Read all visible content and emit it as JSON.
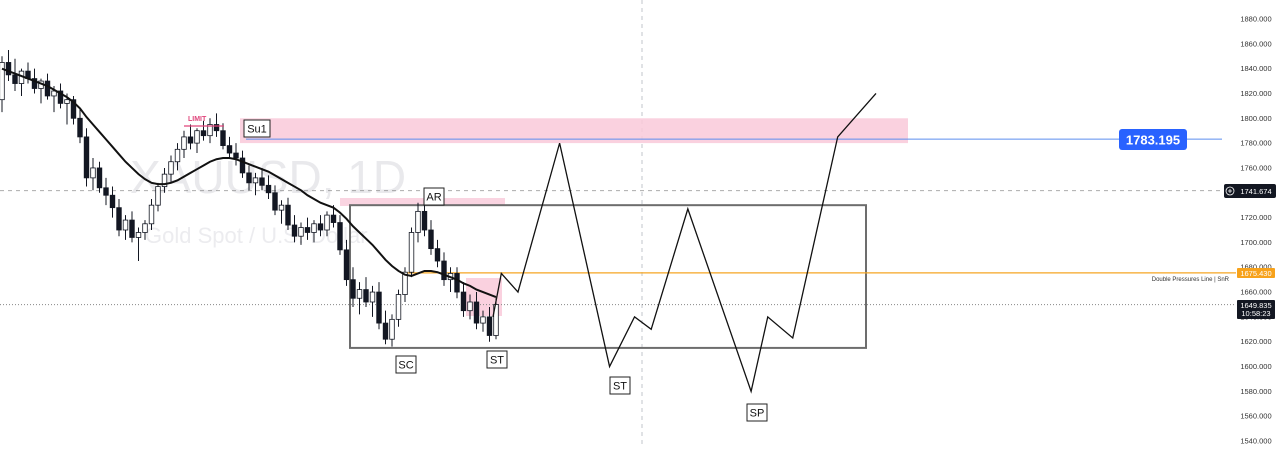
{
  "chart_data": {
    "type": "candlestick",
    "symbol_watermark": "XAUUSD, 1D",
    "subtitle_watermark": "Gold Spot / U.S. Dollar",
    "y_axis": {
      "ticks": [
        1880,
        1860,
        1840,
        1820,
        1800,
        1780,
        1760,
        1740,
        1720,
        1700,
        1680,
        1660,
        1640,
        1620,
        1600,
        1580,
        1560,
        1540
      ],
      "tick_format": "3dp",
      "range": [
        1540,
        1880
      ]
    },
    "price_tags": {
      "alert_price": "1783.195",
      "crosshair_price": "1741.674",
      "line_price": "1675.430",
      "last_price": "1649.835",
      "countdown": "10:58:23"
    },
    "line_label": "Double Pressures Line | SnR",
    "annotations": {
      "limit": "LIMIT",
      "su1": "Su1",
      "ar": "AR",
      "sc": "SC",
      "st1": "ST",
      "st2": "ST",
      "sp": "SP"
    },
    "levels": {
      "alert_line": 1783.195,
      "orange_line": 1675.43,
      "last_price_line": 1649.835,
      "crosshair_line": 1741.674,
      "supply_zone": [
        1780,
        1800
      ],
      "range_box": [
        1615,
        1730
      ]
    },
    "candles": [
      [
        1815,
        1850,
        1805,
        1845
      ],
      [
        1845,
        1855,
        1830,
        1835
      ],
      [
        1835,
        1848,
        1822,
        1828
      ],
      [
        1828,
        1840,
        1818,
        1838
      ],
      [
        1838,
        1845,
        1828,
        1832
      ],
      [
        1832,
        1840,
        1820,
        1824
      ],
      [
        1824,
        1832,
        1812,
        1830
      ],
      [
        1830,
        1836,
        1815,
        1818
      ],
      [
        1818,
        1826,
        1805,
        1822
      ],
      [
        1822,
        1828,
        1808,
        1812
      ],
      [
        1812,
        1820,
        1795,
        1815
      ],
      [
        1815,
        1818,
        1795,
        1800
      ],
      [
        1800,
        1808,
        1780,
        1785
      ],
      [
        1785,
        1792,
        1745,
        1752
      ],
      [
        1752,
        1768,
        1742,
        1760
      ],
      [
        1760,
        1765,
        1740,
        1744
      ],
      [
        1744,
        1752,
        1730,
        1738
      ],
      [
        1738,
        1745,
        1720,
        1728
      ],
      [
        1728,
        1735,
        1705,
        1710
      ],
      [
        1710,
        1722,
        1702,
        1718
      ],
      [
        1718,
        1725,
        1700,
        1704
      ],
      [
        1704,
        1712,
        1685,
        1708
      ],
      [
        1708,
        1718,
        1702,
        1715
      ],
      [
        1715,
        1735,
        1710,
        1730
      ],
      [
        1730,
        1748,
        1725,
        1745
      ],
      [
        1745,
        1760,
        1740,
        1755
      ],
      [
        1755,
        1770,
        1748,
        1765
      ],
      [
        1765,
        1780,
        1758,
        1775
      ],
      [
        1775,
        1790,
        1768,
        1785
      ],
      [
        1785,
        1795,
        1775,
        1780
      ],
      [
        1780,
        1792,
        1772,
        1790
      ],
      [
        1790,
        1798,
        1782,
        1786
      ],
      [
        1786,
        1800,
        1780,
        1795
      ],
      [
        1795,
        1804,
        1785,
        1790
      ],
      [
        1790,
        1796,
        1775,
        1778
      ],
      [
        1778,
        1785,
        1768,
        1772
      ],
      [
        1772,
        1780,
        1762,
        1768
      ],
      [
        1768,
        1774,
        1752,
        1756
      ],
      [
        1756,
        1762,
        1742,
        1748
      ],
      [
        1748,
        1756,
        1738,
        1752
      ],
      [
        1752,
        1760,
        1742,
        1746
      ],
      [
        1746,
        1754,
        1735,
        1740
      ],
      [
        1740,
        1746,
        1722,
        1726
      ],
      [
        1726,
        1734,
        1715,
        1730
      ],
      [
        1730,
        1736,
        1710,
        1714
      ],
      [
        1714,
        1722,
        1700,
        1705
      ],
      [
        1705,
        1716,
        1698,
        1712
      ],
      [
        1712,
        1720,
        1702,
        1708
      ],
      [
        1708,
        1718,
        1700,
        1715
      ],
      [
        1715,
        1722,
        1705,
        1710
      ],
      [
        1710,
        1725,
        1705,
        1722
      ],
      [
        1722,
        1730,
        1712,
        1716
      ],
      [
        1716,
        1722,
        1690,
        1694
      ],
      [
        1694,
        1702,
        1665,
        1670
      ],
      [
        1670,
        1680,
        1648,
        1655
      ],
      [
        1655,
        1668,
        1642,
        1662
      ],
      [
        1662,
        1672,
        1648,
        1652
      ],
      [
        1652,
        1665,
        1640,
        1660
      ],
      [
        1660,
        1668,
        1630,
        1635
      ],
      [
        1635,
        1645,
        1618,
        1622
      ],
      [
        1622,
        1642,
        1616,
        1638
      ],
      [
        1638,
        1662,
        1632,
        1658
      ],
      [
        1658,
        1680,
        1652,
        1676
      ],
      [
        1676,
        1712,
        1672,
        1708
      ],
      [
        1708,
        1732,
        1700,
        1725
      ],
      [
        1725,
        1730,
        1705,
        1710
      ],
      [
        1710,
        1718,
        1690,
        1695
      ],
      [
        1695,
        1702,
        1680,
        1685
      ],
      [
        1685,
        1692,
        1665,
        1670
      ],
      [
        1670,
        1680,
        1660,
        1675
      ],
      [
        1675,
        1680,
        1655,
        1660
      ],
      [
        1660,
        1668,
        1640,
        1645
      ],
      [
        1645,
        1658,
        1638,
        1652
      ],
      [
        1652,
        1660,
        1630,
        1635
      ],
      [
        1635,
        1645,
        1628,
        1640
      ],
      [
        1640,
        1648,
        1620,
        1625
      ],
      [
        1625,
        1655,
        1622,
        1650
      ]
    ],
    "ema": [
      1840,
      1838,
      1836,
      1834,
      1832,
      1830,
      1828,
      1826,
      1823,
      1820,
      1817,
      1813,
      1808,
      1801,
      1795,
      1789,
      1783,
      1777,
      1771,
      1765,
      1760,
      1755,
      1751,
      1748,
      1747,
      1747,
      1748,
      1750,
      1753,
      1756,
      1759,
      1762,
      1765,
      1767,
      1768,
      1768,
      1767,
      1765,
      1763,
      1761,
      1759,
      1757,
      1754,
      1751,
      1748,
      1745,
      1742,
      1738,
      1735,
      1732,
      1730,
      1728,
      1724,
      1719,
      1713,
      1708,
      1703,
      1698,
      1692,
      1686,
      1681,
      1677,
      1674,
      1673,
      1675,
      1677,
      1677,
      1676,
      1674,
      1672,
      1670,
      1667,
      1665,
      1662,
      1660,
      1658,
      1656
    ],
    "projection": [
      [
        1675,
        1640
      ],
      [
        1680,
        1675
      ],
      [
        1690,
        1660
      ],
      [
        1715,
        1780
      ],
      [
        1745,
        1600
      ],
      [
        1760,
        1640
      ],
      [
        1770,
        1630
      ],
      [
        1792,
        1727
      ],
      [
        1830,
        1580
      ],
      [
        1840,
        1640
      ],
      [
        1855,
        1623
      ],
      [
        1882,
        1785
      ],
      [
        1905,
        1820
      ]
    ]
  }
}
